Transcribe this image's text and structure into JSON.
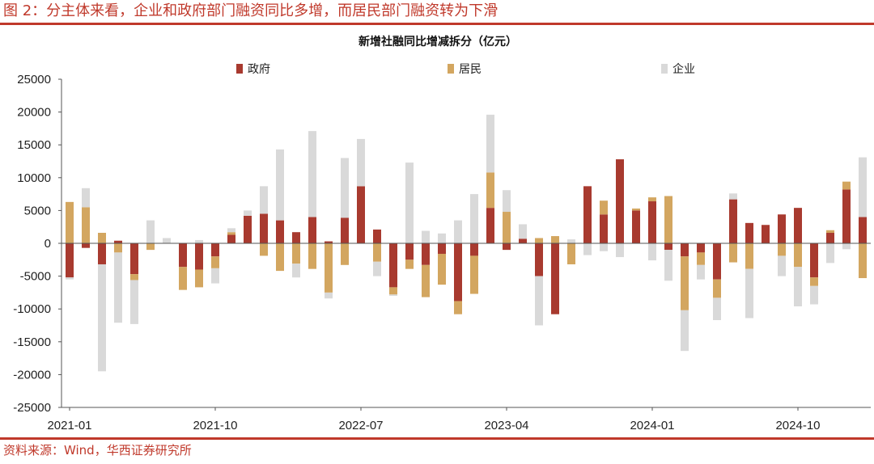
{
  "header": {
    "title": "图 2：分主体来看，企业和政府部门融资同比多增，而居民部门融资转为下滑"
  },
  "footer": {
    "source": "资料来源：Wind，华西证券研究所"
  },
  "colors": {
    "accent": "#c0392b",
    "gov": "#a83a2f",
    "res": "#d3a660",
    "ent": "#d9d9d9"
  },
  "chart_data": {
    "type": "bar",
    "stacked": true,
    "title": "新增社融同比增减拆分（亿元）",
    "legend_position": "top",
    "ylim": [
      -25000,
      25000
    ],
    "yticks": [
      25000,
      20000,
      15000,
      10000,
      5000,
      0,
      -5000,
      -10000,
      -15000,
      -20000,
      -25000
    ],
    "xtick_labels": [
      "2021-01",
      "2021-10",
      "2022-07",
      "2023-04",
      "2024-01",
      "2024-10"
    ],
    "categories": [
      "2021-01",
      "2021-02",
      "2021-03",
      "2021-04",
      "2021-05",
      "2021-06",
      "2021-07",
      "2021-08",
      "2021-09",
      "2021-10",
      "2021-11",
      "2021-12",
      "2022-01",
      "2022-02",
      "2022-03",
      "2022-04",
      "2022-05",
      "2022-06",
      "2022-07",
      "2022-08",
      "2022-09",
      "2022-10",
      "2022-11",
      "2022-12",
      "2023-01",
      "2023-02",
      "2023-03",
      "2023-04",
      "2023-05",
      "2023-06",
      "2023-07",
      "2023-08",
      "2023-09",
      "2023-10",
      "2023-11",
      "2023-12",
      "2024-01",
      "2024-02",
      "2024-03",
      "2024-04",
      "2024-05",
      "2024-06",
      "2024-07",
      "2024-08",
      "2024-09",
      "2024-10",
      "2024-11",
      "2024-12"
    ],
    "series": [
      {
        "name": "政府",
        "color": "#a83a2f",
        "values": [
          -5200,
          -700,
          -3200,
          400,
          -4700,
          0,
          0,
          -3600,
          -4000,
          -2000,
          1300,
          4200,
          4500,
          3500,
          1700,
          4000,
          300,
          3900,
          8700,
          2100,
          -6700,
          -2500,
          -3300,
          -1600,
          -8800,
          -1900,
          5400,
          -1000,
          700,
          -5000,
          -10800,
          0,
          8700,
          4400,
          12800,
          5000,
          6400,
          -1000,
          -2000,
          -1400,
          -5500,
          6700,
          3100,
          2800,
          4400,
          5400,
          -5200,
          1600
        ]
      },
      {
        "name": "居民",
        "color": "#d3a660",
        "values": [
          6300,
          5500,
          1600,
          -1400,
          -900,
          -1000,
          0,
          -3500,
          -2700,
          -1800,
          400,
          0,
          -1900,
          -4200,
          -3100,
          -3900,
          -7500,
          -3300,
          0,
          -2800,
          -1100,
          -1400,
          -4900,
          -4700,
          -2000,
          -5800,
          5400,
          4800,
          0,
          800,
          1100,
          -3200,
          0,
          2100,
          0,
          300,
          600,
          7200,
          -8200,
          -1900,
          -2800,
          -2900,
          -3900,
          0,
          -1900,
          -3600,
          -1300,
          400
        ]
      },
      {
        "name": "企业",
        "color": "#d9d9d9",
        "values": [
          -300,
          2900,
          -16300,
          -10700,
          -6700,
          3500,
          800,
          0,
          500,
          -2300,
          600,
          800,
          4200,
          10800,
          -2100,
          13100,
          -900,
          9100,
          7200,
          -2200,
          -200,
          12300,
          1900,
          1500,
          3500,
          7500,
          8800,
          3300,
          2200,
          -7500,
          0,
          600,
          -1800,
          -1200,
          -2100,
          0,
          -2600,
          -4700,
          -6200,
          -2200,
          -3400,
          900,
          -7500,
          0,
          -3100,
          -6000,
          -2800,
          -3000
        ]
      }
    ],
    "trailing_bars": [
      {
        "category": "2025-01",
        "values": {
          "政府": 8200,
          "居民": 1200,
          "企业": -900
        }
      },
      {
        "category": "2025-02",
        "values": {
          "政府": 4000,
          "居民": -5300,
          "企业": 9100
        }
      }
    ]
  }
}
